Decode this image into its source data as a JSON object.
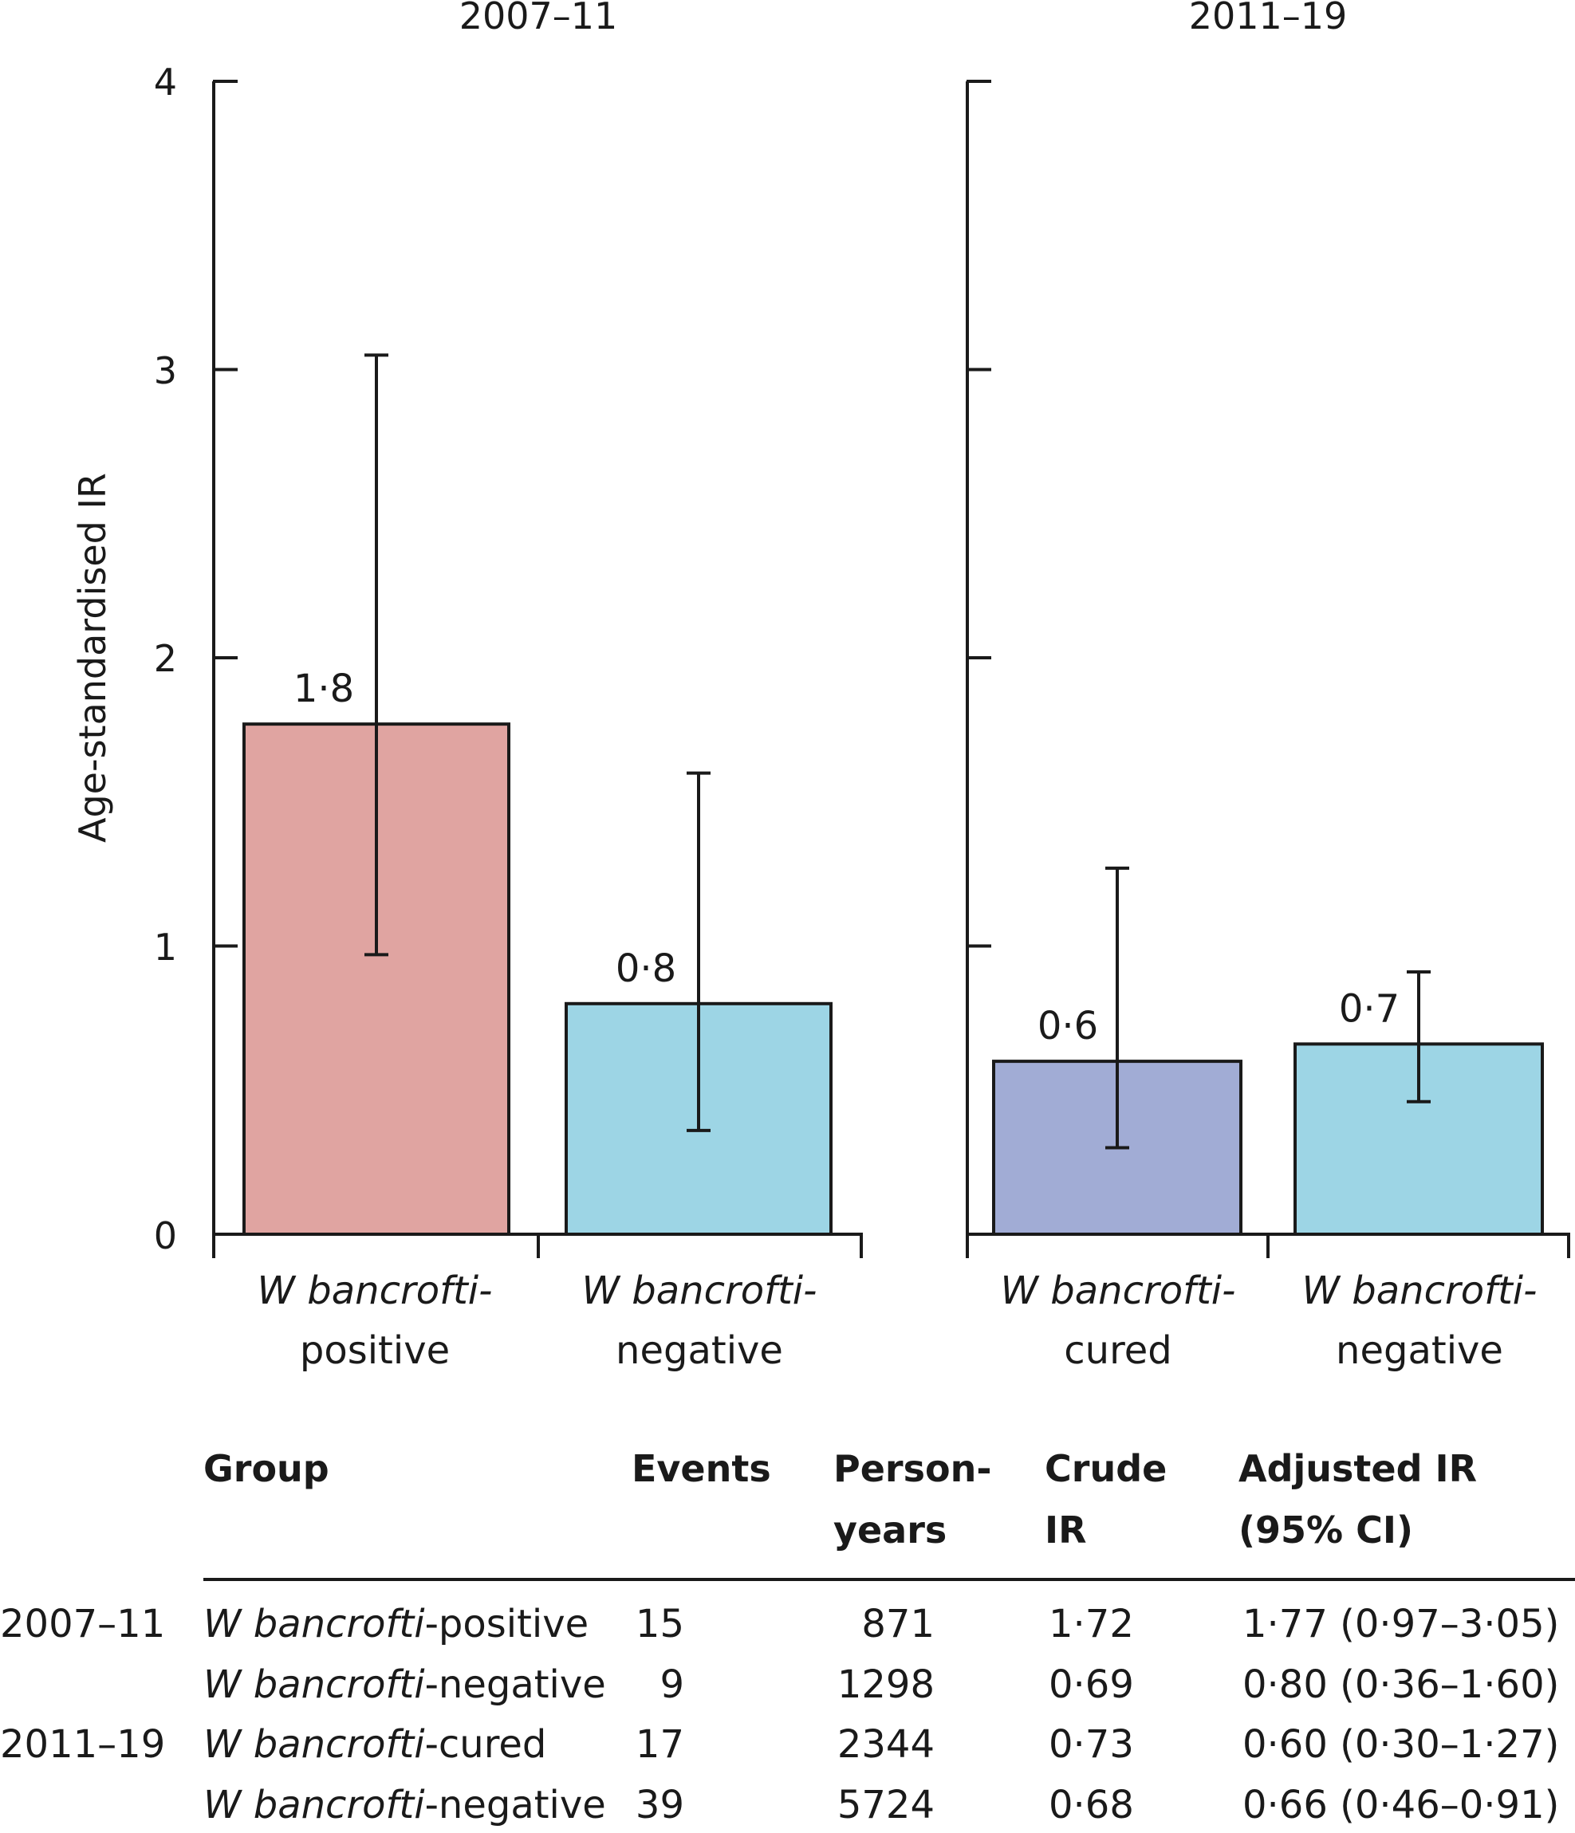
{
  "chart_data": {
    "type": "bar",
    "ylabel": "Age-standardised IR",
    "ylim": [
      0,
      4
    ],
    "yticks": [
      "0",
      "1",
      "2",
      "3",
      "4"
    ],
    "panels": [
      {
        "title": "2007–11",
        "bars": [
          {
            "label_line1": "W bancrofti-",
            "label_line2": "positive",
            "value": 1.77,
            "display": "1·8",
            "ci_low": 0.97,
            "ci_high": 3.05,
            "color": "#e0a4a1"
          },
          {
            "label_line1": "W bancrofti-",
            "label_line2": "negative",
            "value": 0.8,
            "display": "0·8",
            "ci_low": 0.36,
            "ci_high": 1.6,
            "color": "#9dd5e5"
          }
        ]
      },
      {
        "title": "2011–19",
        "bars": [
          {
            "label_line1": "W bancrofti-",
            "label_line2": "cured",
            "value": 0.6,
            "display": "0·6",
            "ci_low": 0.3,
            "ci_high": 1.27,
            "color": "#a1acd5"
          },
          {
            "label_line1": "W bancrofti-",
            "label_line2": "negative",
            "value": 0.66,
            "display": "0·7",
            "ci_low": 0.46,
            "ci_high": 0.91,
            "color": "#9dd5e5"
          }
        ]
      }
    ]
  },
  "table": {
    "headers": {
      "group": "Group",
      "events": "Events",
      "person_years_1": "Person-",
      "person_years_2": "years",
      "crude_1": "Crude",
      "crude_2": "IR",
      "adjusted_1": "Adjusted IR",
      "adjusted_2": "(95% CI)"
    },
    "rows": [
      {
        "period": "2007–11",
        "group_italic": "W bancrofti",
        "group_suffix": "-positive",
        "events": "15",
        "person_years": "871",
        "crude_ir": "1·72",
        "adjusted_ir": "1·77 (0·97–3·05)"
      },
      {
        "period": "",
        "group_italic": "W bancrofti",
        "group_suffix": "-negative",
        "events": "9",
        "person_years": "1298",
        "crude_ir": "0·69",
        "adjusted_ir": "0·80 (0·36–1·60)"
      },
      {
        "period": "2011–19",
        "group_italic": "W bancrofti",
        "group_suffix": "-cured",
        "events": "17",
        "person_years": "2344",
        "crude_ir": "0·73",
        "adjusted_ir": "0·60 (0·30–1·27)"
      },
      {
        "period": "",
        "group_italic": "W bancrofti",
        "group_suffix": "-negative",
        "events": "39",
        "person_years": "5724",
        "crude_ir": "0·68",
        "adjusted_ir": "0·66 (0·46–0·91)"
      }
    ]
  }
}
